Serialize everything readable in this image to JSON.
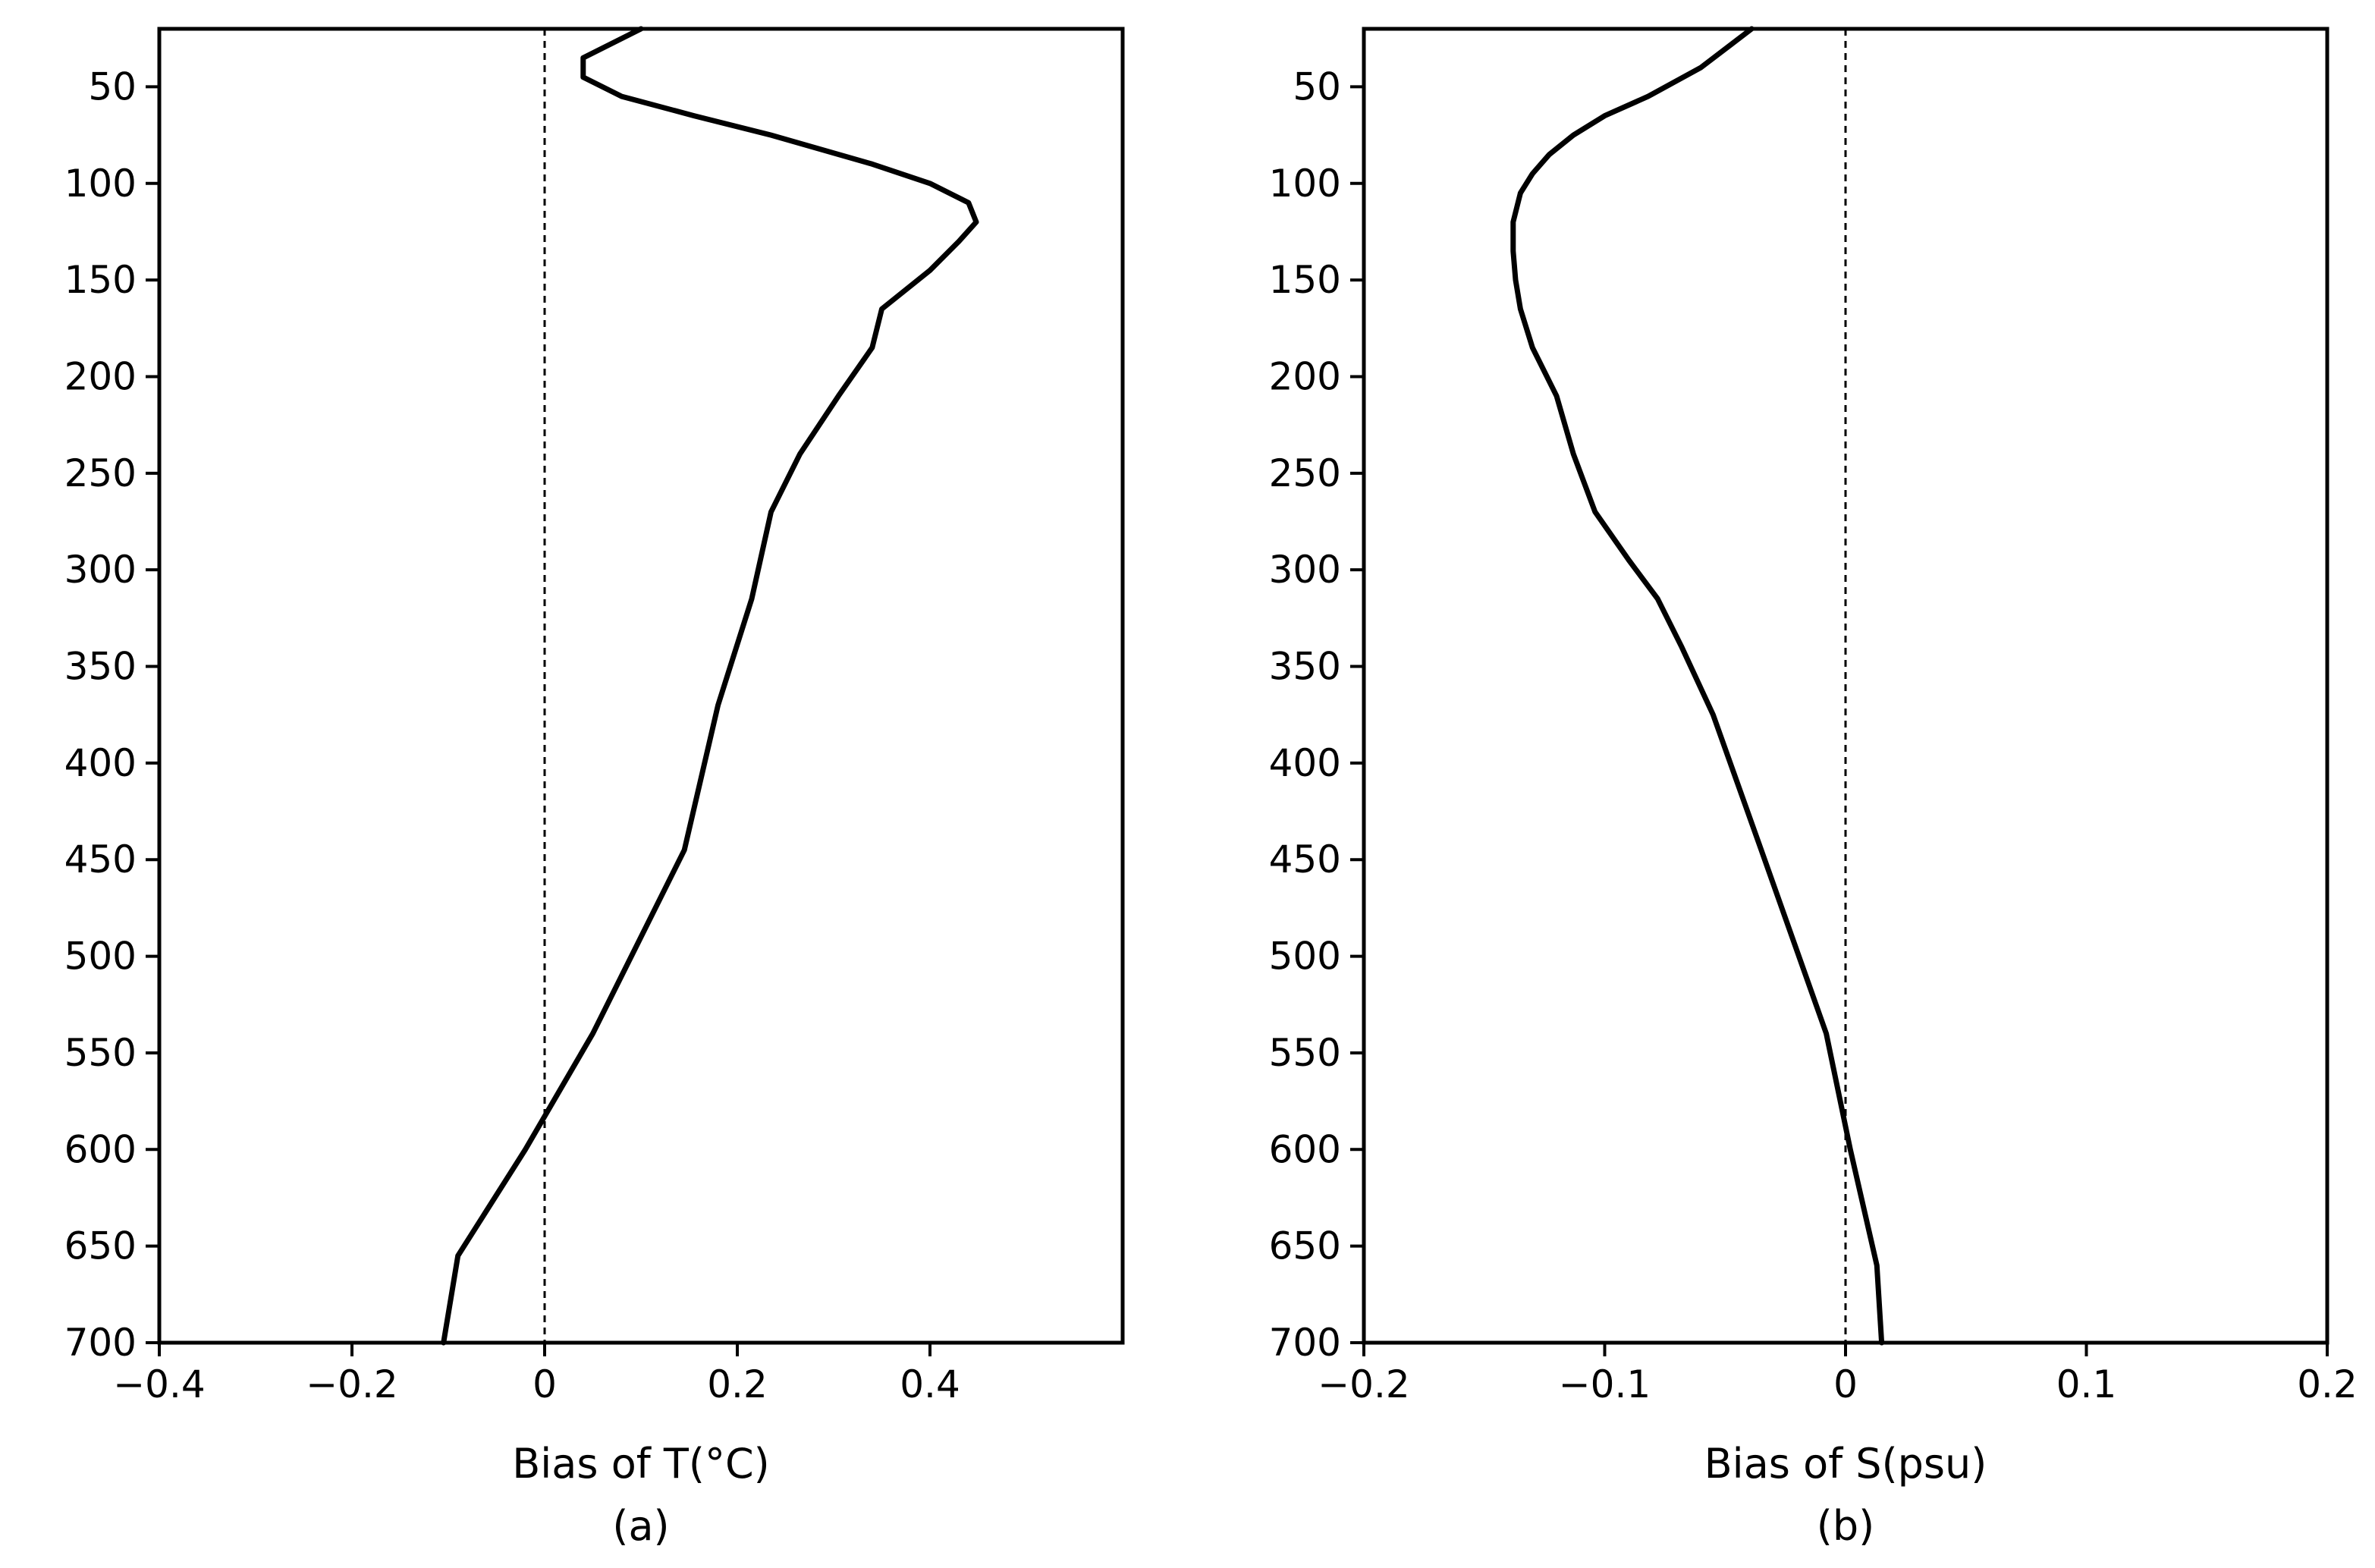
{
  "chart_data": [
    {
      "type": "line",
      "panel_label": "(a)",
      "xlabel": "Bias of T(°C)",
      "ylabel": "",
      "xlim": [
        -0.4,
        0.6
      ],
      "ylim": [
        20,
        700
      ],
      "y_inverted": true,
      "x_ticks": [
        -0.4,
        -0.2,
        0,
        0.2,
        0.4
      ],
      "x_tick_labels": [
        "−0.4",
        "−0.2",
        "0",
        "0.2",
        "0.4"
      ],
      "y_ticks": [
        50,
        100,
        150,
        200,
        250,
        300,
        350,
        400,
        450,
        500,
        550,
        600,
        650,
        700
      ],
      "y_tick_labels": [
        "50",
        "100",
        "150",
        "200",
        "250",
        "300",
        "350",
        "400",
        "450",
        "500",
        "550",
        "600",
        "650",
        "700"
      ],
      "zero_line": 0,
      "series": [
        {
          "name": "T bias",
          "x": [
            0.1,
            0.04,
            0.04,
            0.08,
            0.155,
            0.235,
            0.34,
            0.4,
            0.44,
            0.448,
            0.43,
            0.4,
            0.35,
            0.34,
            0.305,
            0.265,
            0.235,
            0.215,
            0.18,
            0.145,
            0.05,
            -0.02,
            -0.09,
            -0.105
          ],
          "y": [
            20,
            35,
            45,
            55,
            65,
            75,
            90,
            100,
            110,
            120,
            130,
            145,
            165,
            185,
            210,
            240,
            270,
            315,
            370,
            445,
            540,
            600,
            655,
            700
          ]
        }
      ]
    },
    {
      "type": "line",
      "panel_label": "(b)",
      "xlabel": "Bias of S(psu)",
      "ylabel": "",
      "xlim": [
        -0.2,
        0.2
      ],
      "ylim": [
        20,
        700
      ],
      "y_inverted": true,
      "x_ticks": [
        -0.2,
        -0.1,
        0,
        0.1,
        0.2
      ],
      "x_tick_labels": [
        "−0.2",
        "−0.1",
        "0",
        "0.1",
        "0.2"
      ],
      "y_ticks": [
        50,
        100,
        150,
        200,
        250,
        300,
        350,
        400,
        450,
        500,
        550,
        600,
        650,
        700
      ],
      "y_tick_labels": [
        "50",
        "100",
        "150",
        "200",
        "250",
        "300",
        "350",
        "400",
        "450",
        "500",
        "550",
        "600",
        "650",
        "700"
      ],
      "zero_line": 0,
      "series": [
        {
          "name": "S bias",
          "x": [
            -0.039,
            -0.06,
            -0.082,
            -0.1,
            -0.113,
            -0.123,
            -0.13,
            -0.135,
            -0.138,
            -0.138,
            -0.137,
            -0.135,
            -0.13,
            -0.12,
            -0.113,
            -0.104,
            -0.09,
            -0.078,
            -0.068,
            -0.055,
            -0.035,
            -0.008,
            0.002,
            0.013,
            0.015
          ],
          "y": [
            20,
            40,
            55,
            65,
            75,
            85,
            95,
            105,
            120,
            135,
            150,
            165,
            185,
            210,
            240,
            270,
            295,
            315,
            340,
            375,
            445,
            540,
            600,
            660,
            700
          ]
        }
      ]
    }
  ]
}
